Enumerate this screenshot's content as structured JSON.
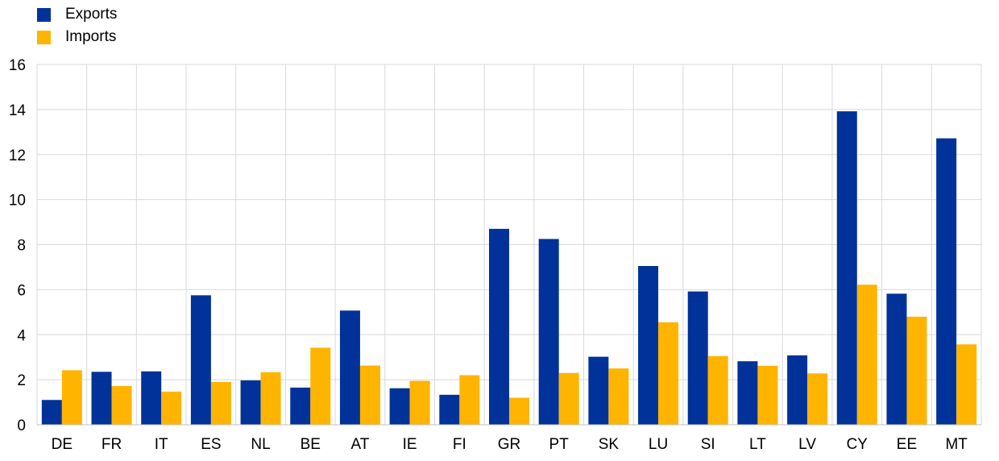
{
  "chart_data": {
    "type": "bar",
    "title": "",
    "xlabel": "",
    "ylabel": "",
    "ylim": [
      0,
      16
    ],
    "yticks": [
      0,
      2,
      4,
      6,
      8,
      10,
      12,
      14,
      16
    ],
    "grid": true,
    "legend_position": "top-left",
    "categories": [
      "DE",
      "FR",
      "IT",
      "ES",
      "NL",
      "BE",
      "AT",
      "IE",
      "FI",
      "GR",
      "PT",
      "SK",
      "LU",
      "SI",
      "LT",
      "LV",
      "CY",
      "EE",
      "MT"
    ],
    "series": [
      {
        "name": "Exports",
        "color": "#003299",
        "values": [
          1.1,
          2.35,
          2.37,
          5.75,
          1.97,
          1.65,
          5.07,
          1.62,
          1.33,
          8.7,
          8.25,
          3.02,
          7.05,
          5.92,
          2.82,
          3.08,
          13.92,
          5.82,
          12.72
        ]
      },
      {
        "name": "Imports",
        "color": "#FFB400",
        "values": [
          2.42,
          1.72,
          1.47,
          1.9,
          2.33,
          3.42,
          2.63,
          1.95,
          2.2,
          1.2,
          2.3,
          2.5,
          4.55,
          3.05,
          2.62,
          2.28,
          6.22,
          4.8,
          3.57
        ]
      }
    ]
  }
}
